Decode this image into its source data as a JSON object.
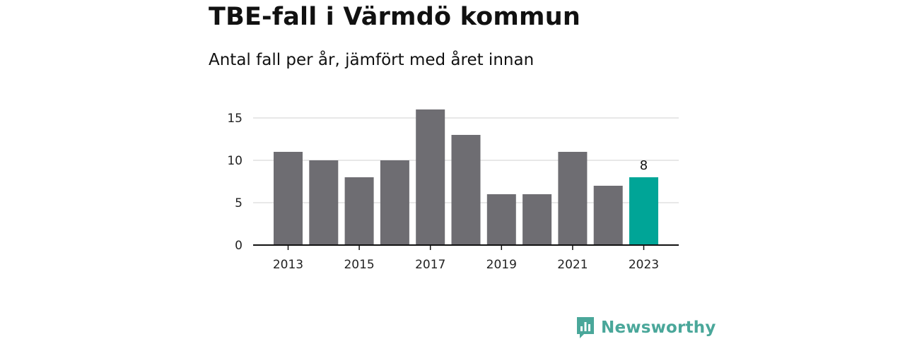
{
  "header": {
    "title": "TBE-fall i Värmdö kommun",
    "subtitle": "Antal fall per år, jämfört med året innan"
  },
  "colors": {
    "bar": "#6e6d72",
    "highlight": "#00a597",
    "grid": "#d9d9d9",
    "axis": "#111111",
    "brand": "#4aa79a"
  },
  "chart_data": {
    "type": "bar",
    "categories": [
      "2013",
      "2014",
      "2015",
      "2016",
      "2017",
      "2018",
      "2019",
      "2020",
      "2021",
      "2022",
      "2023"
    ],
    "values": [
      11,
      10,
      8,
      10,
      16,
      13,
      6,
      6,
      11,
      7,
      8
    ],
    "x_tick_labels": [
      "2013",
      "2015",
      "2017",
      "2019",
      "2021",
      "2023"
    ],
    "y_ticks": [
      0,
      5,
      10,
      15
    ],
    "ylim": [
      0,
      16
    ],
    "highlight_category": "2023",
    "data_labels": [
      {
        "category": "2023",
        "text": "8"
      }
    ],
    "grid": true,
    "legend": "none",
    "xlabel": "",
    "ylabel": ""
  },
  "logo": {
    "text": "Newsworthy",
    "icon": "bar-chart-speech-bubble-icon"
  }
}
